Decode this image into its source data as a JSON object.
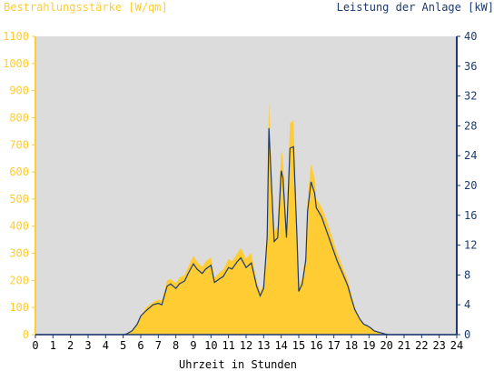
{
  "chart_data": {
    "type": "area",
    "title_left": "Bestrahlungsstärke [W/qm]",
    "title_right": "Leistung der Anlage [kW]",
    "xlabel": "Uhrzeit in Stunden",
    "xlim": [
      0,
      24
    ],
    "x_ticks": [
      "0",
      "1",
      "2",
      "3",
      "4",
      "5",
      "6",
      "7",
      "8",
      "9",
      "10",
      "11",
      "12",
      "13",
      "14",
      "15",
      "16",
      "17",
      "18",
      "19",
      "20",
      "21",
      "22",
      "23",
      "24"
    ],
    "ylim_left": [
      0,
      1100
    ],
    "y_ticks_left": [
      "0",
      "100",
      "200",
      "300",
      "400",
      "500",
      "600",
      "700",
      "800",
      "900",
      "1000",
      "1100"
    ],
    "ylim_right": [
      0,
      40
    ],
    "y_ticks_right": [
      "0",
      "4",
      "8",
      "12",
      "16",
      "20",
      "24",
      "28",
      "32",
      "36",
      "40"
    ],
    "grid": false,
    "background_color": "#dcdcdc",
    "series": [
      {
        "axis": "left",
        "color": "#ffcc33",
        "x": [
          0,
          5,
          5.2,
          5.5,
          5.8,
          6.0,
          6.3,
          6.5,
          6.7,
          7.0,
          7.2,
          7.5,
          7.7,
          8.0,
          8.2,
          8.5,
          8.7,
          9.0,
          9.2,
          9.5,
          9.7,
          10.0,
          10.2,
          10.5,
          10.7,
          11.0,
          11.2,
          11.5,
          11.7,
          12.0,
          12.3,
          12.6,
          12.8,
          13.0,
          13.2,
          13.3,
          13.45,
          13.6,
          13.8,
          14.0,
          14.1,
          14.3,
          14.5,
          14.7,
          14.9,
          15.0,
          15.2,
          15.4,
          15.5,
          15.7,
          15.9,
          16.0,
          16.3,
          16.6,
          16.9,
          17.2,
          17.5,
          17.8,
          18.0,
          18.2,
          18.5,
          18.7,
          18.9,
          19.1,
          19.3,
          19.6,
          19.9,
          20.1,
          20.3,
          24
        ],
        "y": [
          0,
          0,
          3,
          15,
          40,
          70,
          100,
          110,
          120,
          130,
          125,
          200,
          205,
          190,
          210,
          220,
          250,
          290,
          270,
          250,
          270,
          285,
          210,
          230,
          240,
          280,
          270,
          300,
          320,
          280,
          300,
          200,
          160,
          190,
          400,
          860,
          600,
          380,
          400,
          680,
          650,
          400,
          780,
          790,
          400,
          180,
          210,
          300,
          500,
          630,
          580,
          500,
          470,
          420,
          360,
          300,
          250,
          200,
          150,
          100,
          60,
          40,
          35,
          25,
          15,
          8,
          3,
          0,
          0,
          0
        ]
      },
      {
        "axis": "right",
        "color": "#1c3a6e",
        "x": [
          0,
          5,
          5.2,
          5.5,
          5.8,
          6.0,
          6.3,
          6.5,
          6.7,
          7.0,
          7.2,
          7.5,
          7.7,
          8.0,
          8.2,
          8.5,
          8.7,
          9.0,
          9.2,
          9.5,
          9.7,
          10.0,
          10.2,
          10.5,
          10.7,
          11.0,
          11.2,
          11.5,
          11.7,
          12.0,
          12.3,
          12.6,
          12.8,
          13.0,
          13.2,
          13.3,
          13.45,
          13.6,
          13.8,
          14.0,
          14.1,
          14.3,
          14.5,
          14.7,
          14.9,
          15.0,
          15.2,
          15.4,
          15.5,
          15.7,
          15.9,
          16.0,
          16.3,
          16.6,
          16.9,
          17.2,
          17.5,
          17.8,
          18.0,
          18.2,
          18.5,
          18.7,
          18.9,
          19.1,
          19.3,
          19.6,
          19.9,
          20.1,
          20.3,
          24
        ],
        "y": [
          0,
          0,
          0.1,
          0.5,
          1.4,
          2.5,
          3.2,
          3.6,
          4.0,
          4.2,
          4.0,
          6.5,
          6.8,
          6.2,
          6.8,
          7.2,
          8.2,
          9.5,
          8.8,
          8.2,
          8.8,
          9.3,
          7.0,
          7.5,
          7.8,
          9.0,
          8.8,
          9.8,
          10.3,
          9.0,
          9.6,
          6.5,
          5.2,
          6.2,
          13.0,
          27.7,
          20.0,
          12.5,
          13.0,
          22.0,
          21.0,
          13.0,
          25.0,
          25.2,
          13.0,
          5.8,
          6.8,
          10.0,
          16.5,
          20.5,
          19.0,
          17.0,
          15.8,
          13.8,
          11.8,
          9.8,
          8.2,
          6.5,
          4.8,
          3.3,
          2.0,
          1.4,
          1.2,
          0.9,
          0.5,
          0.3,
          0.1,
          0,
          0,
          0
        ]
      }
    ]
  }
}
